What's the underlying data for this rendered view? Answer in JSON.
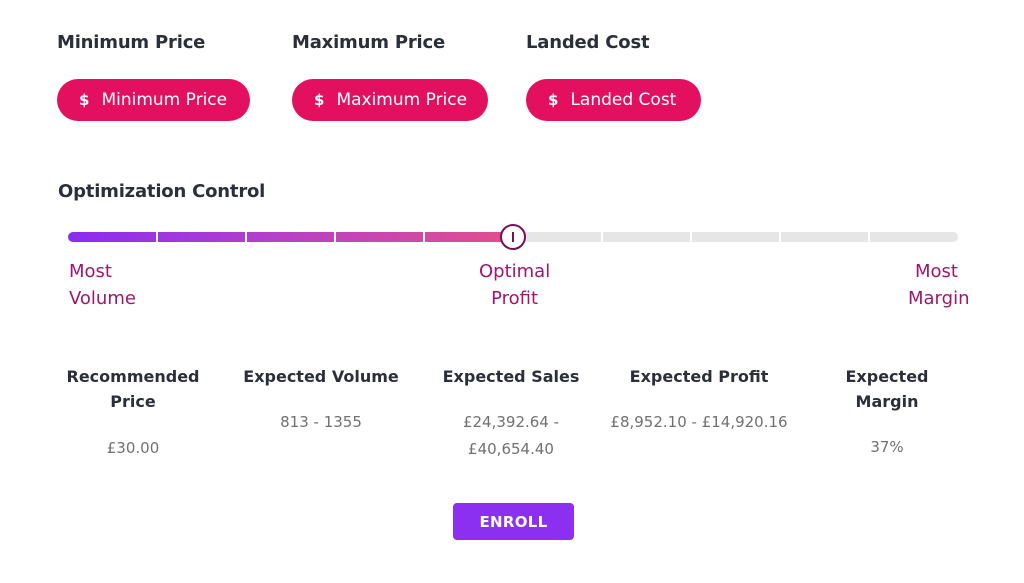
{
  "pricing_fields": [
    {
      "title": "Minimum Price",
      "placeholder": "Minimum Price",
      "icon": "dollar-icon",
      "symbol": "$"
    },
    {
      "title": "Maximum Price",
      "placeholder": "Maximum Price",
      "icon": "dollar-icon",
      "symbol": "$"
    },
    {
      "title": "Landed Cost",
      "placeholder": "Landed Cost",
      "icon": "dollar-icon",
      "symbol": "$"
    }
  ],
  "optimization": {
    "title": "Optimization Control",
    "slider_value_percent": 50,
    "steps": 10,
    "labels": {
      "left": "Most\nVolume",
      "center": "Optimal\nProfit",
      "right": "Most\nMargin"
    }
  },
  "metrics": [
    {
      "label": "Recommended\nPrice",
      "value": "£30.00"
    },
    {
      "label": "Expected Volume",
      "value": "813 - 1355"
    },
    {
      "label": "Expected Sales",
      "value": "£24,392.64 -\n£40,654.40"
    },
    {
      "label": "Expected Profit",
      "value": "£8,952.10 - £14,920.16"
    },
    {
      "label": "Expected Margin",
      "value": "37%"
    }
  ],
  "actions": {
    "enroll_label": "ENROLL"
  },
  "colors": {
    "pill": "#e3105f",
    "accent_purple": "#8b2ff0",
    "scale_label": "#a0156e",
    "thumb_border": "#6e1457"
  }
}
